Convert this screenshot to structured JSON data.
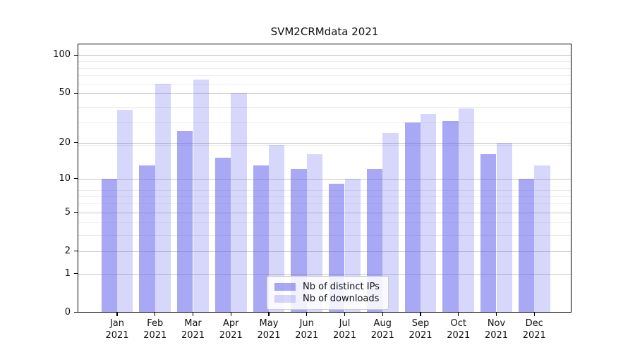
{
  "title": "SVM2CRMdata 2021",
  "chart_data": {
    "type": "bar",
    "title": "SVM2CRMdata 2021",
    "categories": [
      "Jan 2021",
      "Feb 2021",
      "Mar 2021",
      "Apr 2021",
      "May 2021",
      "Jun 2021",
      "Jul 2021",
      "Aug 2021",
      "Sep 2021",
      "Oct 2021",
      "Nov 2021",
      "Dec 2021"
    ],
    "months": [
      "Jan",
      "Feb",
      "Mar",
      "Apr",
      "May",
      "Jun",
      "Jul",
      "Aug",
      "Sep",
      "Oct",
      "Nov",
      "Dec"
    ],
    "year_label": "2021",
    "series": [
      {
        "name": "Nb of distinct IPs",
        "values": [
          10,
          13,
          25,
          15,
          13,
          12,
          9,
          12,
          29,
          30,
          16,
          10
        ],
        "color": "rgba(102,102,238,0.57)"
      },
      {
        "name": "Nb of downloads",
        "values": [
          37,
          59,
          64,
          50,
          19,
          16,
          10,
          24,
          34,
          38,
          20,
          13
        ],
        "color": "rgba(102,102,238,0.26)"
      }
    ],
    "xlabel": "",
    "ylabel": "",
    "yscale": "log1p",
    "ylim": [
      0,
      123
    ],
    "ytick_values": [
      0,
      1,
      2,
      5,
      10,
      20,
      50,
      100
    ],
    "minor_gridline_values": [
      3,
      4,
      6,
      7,
      8,
      19,
      29,
      39,
      59,
      69,
      79,
      89
    ],
    "grid": true,
    "legend_position": "lower center"
  },
  "colors": {
    "bar_base": "#6666ee",
    "major_grid": "#c6c6c6",
    "minor_grid": "#ebebeb",
    "axis": "#000000",
    "legend_border": "#cccccc"
  }
}
